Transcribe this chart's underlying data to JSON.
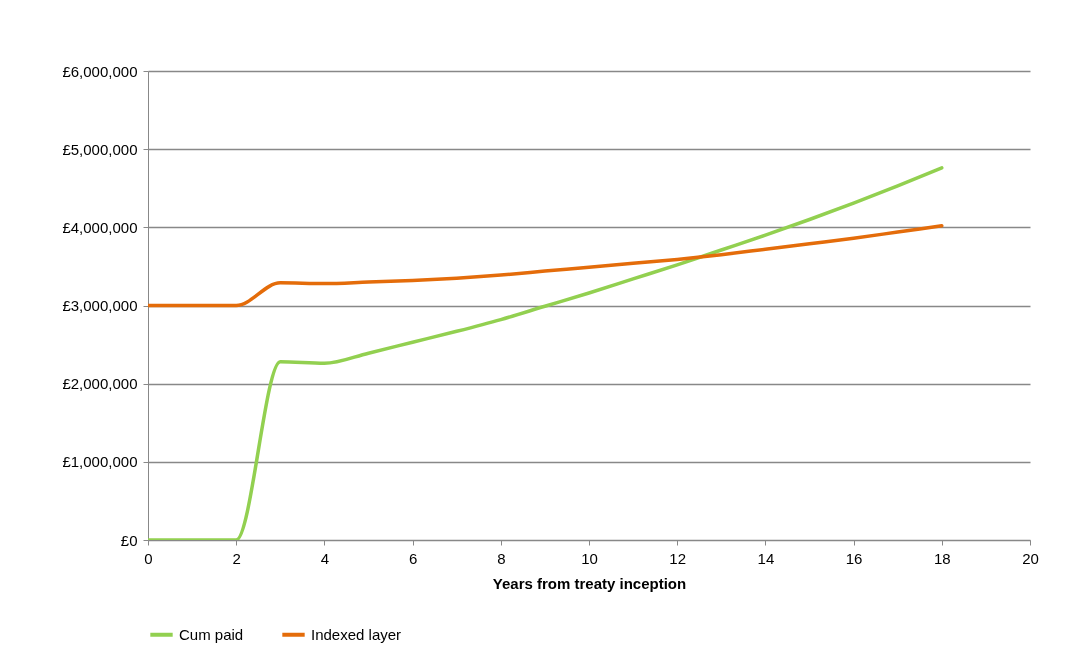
{
  "chart_data": {
    "type": "line",
    "xlabel": "Years from treaty inception",
    "x": [
      0,
      1,
      2,
      3,
      4,
      5,
      6,
      7,
      8,
      9,
      10,
      11,
      12,
      13,
      14,
      15,
      16,
      17,
      18
    ],
    "series": [
      {
        "name": "Cum paid",
        "color": "#92d050",
        "values": [
          0,
          0,
          0,
          2280000,
          2260000,
          2390000,
          2530000,
          2670000,
          2820000,
          2990000,
          3160000,
          3340000,
          3520000,
          3710000,
          3900000,
          4100000,
          4310000,
          4530000,
          4760000
        ]
      },
      {
        "name": "Indexed layer",
        "color": "#e46c0a",
        "values": [
          3000000,
          3000000,
          3000000,
          3290000,
          3280000,
          3300000,
          3320000,
          3350000,
          3390000,
          3440000,
          3490000,
          3540000,
          3590000,
          3650000,
          3720000,
          3790000,
          3860000,
          3940000,
          4020000
        ]
      }
    ],
    "xlim": [
      0,
      20
    ],
    "xticks": [
      0,
      2,
      4,
      6,
      8,
      10,
      12,
      14,
      16,
      18,
      20
    ],
    "ylim": [
      0,
      6000000
    ],
    "yticks": [
      {
        "value": 0,
        "label": "£0"
      },
      {
        "value": 1000000,
        "label": "£1,000,000"
      },
      {
        "value": 2000000,
        "label": "£2,000,000"
      },
      {
        "value": 3000000,
        "label": "£3,000,000"
      },
      {
        "value": 4000000,
        "label": "£4,000,000"
      },
      {
        "value": 5000000,
        "label": "£5,000,000"
      },
      {
        "value": 6000000,
        "label": "£6,000,000"
      }
    ],
    "grid": "y",
    "legend": "bottom",
    "marker": "none",
    "line_style": "solid"
  }
}
